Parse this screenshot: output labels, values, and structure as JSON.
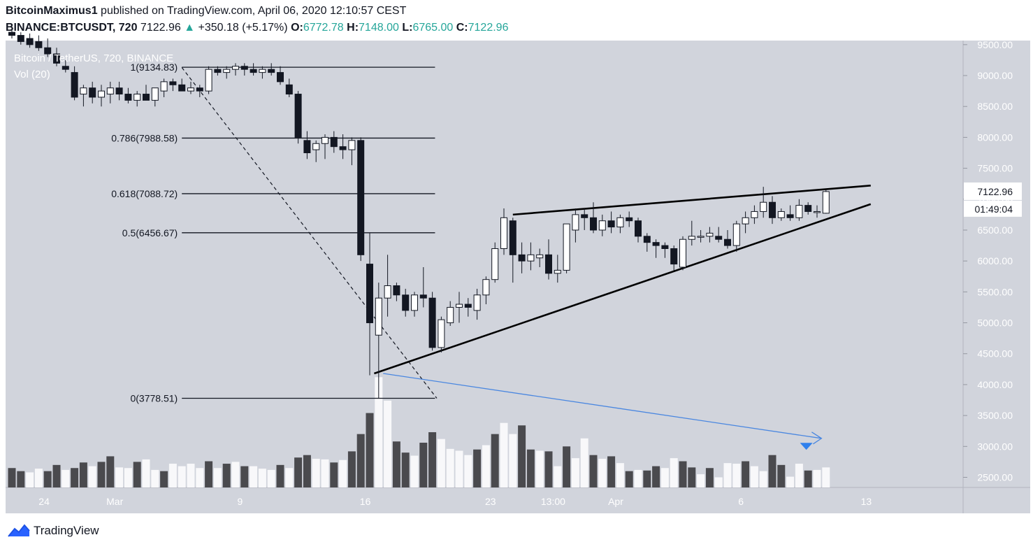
{
  "header": {
    "author": "BitcoinMaximus1",
    "published_text": "published on TradingView.com, April 06, 2020 12:10:57 CEST",
    "symbol": "BINANCE:BTCUSDT, 720",
    "last": "7122.96",
    "change": "+350.18 (+5.17%)",
    "o_label": "O:",
    "o_value": "6772.78",
    "h_label": "H:",
    "h_value": "7148.00",
    "l_label": "L:",
    "l_value": "6765.00",
    "c_label": "C:",
    "c_value": "7122.96"
  },
  "legend": {
    "title": "Bitcoin / TetherUS, 720, BINANCE",
    "volume": "Vol (20)"
  },
  "price_tag": {
    "price": "7122.96",
    "countdown": "01:49:04"
  },
  "footer": {
    "brand": "TradingView"
  },
  "colors": {
    "background": "#d1d4dc",
    "candle_up": "#ffffff",
    "candle_down": "#131722",
    "volume_up": "#f8f8fa",
    "volume_down": "#4a4a4e",
    "trend_arrow": "#4a87e0",
    "marker": "#2f80ed"
  },
  "chart_data": {
    "type": "candlestick",
    "title": "Bitcoin / TetherUS, 720, BINANCE",
    "y_axis_ticks": [
      "9500.00",
      "9000.00",
      "8500.00",
      "8000.00",
      "7500.00",
      "7000.00",
      "6500.00",
      "6000.00",
      "5500.00",
      "5000.00",
      "4500.00",
      "4000.00",
      "3500.00",
      "3000.00",
      "2500.00"
    ],
    "ylim": [
      2300,
      9700
    ],
    "x_axis_ticks": [
      {
        "label": "24",
        "index": 3.6
      },
      {
        "label": "Mar",
        "index": 11.5
      },
      {
        "label": "9",
        "index": 25.5
      },
      {
        "label": "16",
        "index": 39.5
      },
      {
        "label": "23",
        "index": 53.5
      },
      {
        "label": "13:00",
        "index": 60.5
      },
      {
        "label": "Apr",
        "index": 67.5
      },
      {
        "label": "6",
        "index": 81.5
      },
      {
        "label": "13",
        "index": 95.5
      }
    ],
    "fib_levels": [
      {
        "label": "1(9134.83)",
        "price": 9134.83
      },
      {
        "label": "0.786(7988.58)",
        "price": 7988.58
      },
      {
        "label": "0.618(7088.72)",
        "price": 7088.72
      },
      {
        "label": "0.5(6456.67)",
        "price": 6456.67
      },
      {
        "label": "0(3778.51)",
        "price": 3778.51
      }
    ],
    "candles": [
      [
        9700,
        9800,
        9600,
        9650
      ],
      [
        9650,
        9700,
        9500,
        9550
      ],
      [
        9600,
        9680,
        9450,
        9500
      ],
      [
        9550,
        9650,
        9400,
        9450
      ],
      [
        9450,
        9600,
        9300,
        9350
      ],
      [
        9350,
        9450,
        9150,
        9200
      ],
      [
        9150,
        9250,
        9050,
        9100
      ],
      [
        9050,
        9150,
        8600,
        8650
      ],
      [
        8700,
        8850,
        8500,
        8800
      ],
      [
        8800,
        8900,
        8550,
        8650
      ],
      [
        8650,
        8850,
        8500,
        8750
      ],
      [
        8700,
        8900,
        8550,
        8800
      ],
      [
        8800,
        8900,
        8600,
        8700
      ],
      [
        8700,
        8800,
        8550,
        8600
      ],
      [
        8600,
        8750,
        8500,
        8700
      ],
      [
        8700,
        8850,
        8600,
        8600
      ],
      [
        8600,
        8800,
        8500,
        8800
      ],
      [
        8750,
        8950,
        8650,
        8900
      ],
      [
        8900,
        8950,
        8750,
        8850
      ],
      [
        8850,
        8950,
        8750,
        8750
      ],
      [
        8750,
        8900,
        8700,
        8800
      ],
      [
        8800,
        8850,
        8650,
        8750
      ],
      [
        8750,
        9150,
        8700,
        9100
      ],
      [
        9100,
        9150,
        9000,
        9050
      ],
      [
        9050,
        9150,
        8950,
        9100
      ],
      [
        9100,
        9200,
        9000,
        9150
      ],
      [
        9150,
        9200,
        9000,
        9100
      ],
      [
        9100,
        9200,
        9000,
        9050
      ],
      [
        9050,
        9150,
        8950,
        9100
      ],
      [
        9100,
        9200,
        9000,
        9050
      ],
      [
        9050,
        9150,
        8850,
        8900
      ],
      [
        8850,
        8950,
        8650,
        8700
      ],
      [
        8700,
        8750,
        7900,
        8000
      ],
      [
        7950,
        8100,
        7650,
        7750
      ],
      [
        7800,
        7950,
        7600,
        7900
      ],
      [
        7900,
        8050,
        7650,
        8000
      ],
      [
        8000,
        8100,
        7750,
        7850
      ],
      [
        7850,
        8050,
        7650,
        7800
      ],
      [
        7800,
        8000,
        7550,
        7950
      ],
      [
        7950,
        8000,
        6000,
        6100
      ],
      [
        5950,
        6450,
        4150,
        5000
      ],
      [
        4800,
        5650,
        3778,
        5400
      ],
      [
        5400,
        6100,
        5100,
        5600
      ],
      [
        5600,
        5650,
        5350,
        5450
      ],
      [
        5450,
        5550,
        5100,
        5200
      ],
      [
        5200,
        5500,
        5100,
        5450
      ],
      [
        5450,
        5900,
        5250,
        5400
      ],
      [
        5400,
        5500,
        4550,
        4600
      ],
      [
        4600,
        5100,
        4520,
        5050
      ],
      [
        5000,
        5350,
        4950,
        5250
      ],
      [
        5250,
        5500,
        5000,
        5300
      ],
      [
        5300,
        5400,
        5100,
        5250
      ],
      [
        5200,
        5550,
        5050,
        5450
      ],
      [
        5450,
        5750,
        5300,
        5700
      ],
      [
        5700,
        6300,
        5650,
        6200
      ],
      [
        6200,
        6850,
        6100,
        6700
      ],
      [
        6650,
        6700,
        5650,
        6100
      ],
      [
        6100,
        6300,
        5800,
        6000
      ],
      [
        6000,
        6300,
        5850,
        6100
      ],
      [
        6050,
        6200,
        5900,
        6100
      ],
      [
        6100,
        6350,
        5700,
        5800
      ],
      [
        5800,
        6100,
        5650,
        5850
      ],
      [
        5850,
        6600,
        5800,
        6600
      ],
      [
        6500,
        6850,
        6300,
        6750
      ],
      [
        6750,
        6850,
        6500,
        6700
      ],
      [
        6700,
        6950,
        6450,
        6500
      ],
      [
        6500,
        6750,
        6400,
        6650
      ],
      [
        6650,
        6800,
        6450,
        6550
      ],
      [
        6550,
        6750,
        6450,
        6700
      ],
      [
        6700,
        6800,
        6550,
        6650
      ],
      [
        6650,
        6700,
        6300,
        6400
      ],
      [
        6400,
        6450,
        6150,
        6300
      ],
      [
        6300,
        6350,
        6050,
        6250
      ],
      [
        6250,
        6300,
        6050,
        6200
      ],
      [
        6200,
        6250,
        5850,
        5950
      ],
      [
        5900,
        6400,
        5850,
        6350
      ],
      [
        6350,
        6650,
        6250,
        6400
      ],
      [
        6400,
        6500,
        6300,
        6400
      ],
      [
        6400,
        6550,
        6300,
        6450
      ],
      [
        6400,
        6550,
        6300,
        6350
      ],
      [
        6350,
        6500,
        6200,
        6250
      ],
      [
        6250,
        6650,
        6150,
        6600
      ],
      [
        6600,
        6800,
        6450,
        6700
      ],
      [
        6700,
        6900,
        6600,
        6800
      ],
      [
        6800,
        7200,
        6700,
        6950
      ],
      [
        6950,
        7050,
        6600,
        6700
      ],
      [
        6700,
        6850,
        6650,
        6800
      ],
      [
        6750,
        6900,
        6650,
        6700
      ],
      [
        6700,
        7000,
        6650,
        6900
      ],
      [
        6900,
        6950,
        6750,
        6800
      ],
      [
        6800,
        6900,
        6700,
        6800
      ],
      [
        6772.78,
        7148,
        6765,
        7122.96
      ]
    ],
    "volumes": [
      [
        2650,
        0
      ],
      [
        2600,
        0
      ],
      [
        2580,
        1
      ],
      [
        2640,
        1
      ],
      [
        2600,
        0
      ],
      [
        2700,
        0
      ],
      [
        2620,
        1
      ],
      [
        2650,
        0
      ],
      [
        2740,
        0
      ],
      [
        2680,
        1
      ],
      [
        2750,
        0
      ],
      [
        2840,
        0
      ],
      [
        2660,
        1
      ],
      [
        2650,
        1
      ],
      [
        2750,
        0
      ],
      [
        2790,
        1
      ],
      [
        2620,
        1
      ],
      [
        2600,
        0
      ],
      [
        2720,
        1
      ],
      [
        2680,
        1
      ],
      [
        2720,
        1
      ],
      [
        2650,
        1
      ],
      [
        2760,
        0
      ],
      [
        2650,
        1
      ],
      [
        2720,
        0
      ],
      [
        2750,
        1
      ],
      [
        2680,
        0
      ],
      [
        2680,
        1
      ],
      [
        2640,
        1
      ],
      [
        2620,
        1
      ],
      [
        2700,
        0
      ],
      [
        2650,
        1
      ],
      [
        2820,
        0
      ],
      [
        2860,
        0
      ],
      [
        2800,
        1
      ],
      [
        2790,
        1
      ],
      [
        2740,
        0
      ],
      [
        2780,
        1
      ],
      [
        2920,
        0
      ],
      [
        3200,
        0
      ],
      [
        3540,
        0
      ],
      [
        4120,
        1
      ],
      [
        3740,
        1
      ],
      [
        3080,
        0
      ],
      [
        2900,
        0
      ],
      [
        2850,
        1
      ],
      [
        3060,
        0
      ],
      [
        3230,
        0
      ],
      [
        3120,
        1
      ],
      [
        2960,
        1
      ],
      [
        2930,
        1
      ],
      [
        2860,
        1
      ],
      [
        2950,
        0
      ],
      [
        3020,
        1
      ],
      [
        3200,
        0
      ],
      [
        3380,
        1
      ],
      [
        3200,
        1
      ],
      [
        3340,
        0
      ],
      [
        2950,
        0
      ],
      [
        2930,
        1
      ],
      [
        2920,
        0
      ],
      [
        2680,
        1
      ],
      [
        3000,
        0
      ],
      [
        2810,
        1
      ],
      [
        3130,
        1
      ],
      [
        2860,
        0
      ],
      [
        2800,
        1
      ],
      [
        2840,
        0
      ],
      [
        2730,
        1
      ],
      [
        2600,
        0
      ],
      [
        2620,
        1
      ],
      [
        2610,
        0
      ],
      [
        2680,
        0
      ],
      [
        2650,
        1
      ],
      [
        2810,
        1
      ],
      [
        2760,
        0
      ],
      [
        2660,
        0
      ],
      [
        2550,
        1
      ],
      [
        2650,
        0
      ],
      [
        2500,
        1
      ],
      [
        2730,
        1
      ],
      [
        2720,
        1
      ],
      [
        2760,
        0
      ],
      [
        2680,
        1
      ],
      [
        2600,
        1
      ],
      [
        2860,
        0
      ],
      [
        2700,
        0
      ],
      [
        2510,
        1
      ],
      [
        2720,
        1
      ],
      [
        2610,
        0
      ],
      [
        2620,
        1
      ],
      [
        2660,
        1
      ]
    ],
    "trendlines": {
      "support": [
        [
          40.5,
          4180
        ],
        [
          96,
          6920
        ]
      ],
      "resistance": [
        [
          56,
          6750
        ],
        [
          96,
          7220
        ]
      ],
      "fib_diagonal": [
        [
          19,
          9130
        ],
        [
          47.5,
          3778
        ]
      ],
      "volume_arrow": [
        [
          41.5,
          4180
        ],
        [
          90.5,
          3130
        ]
      ]
    },
    "marker_price": 3000
  }
}
